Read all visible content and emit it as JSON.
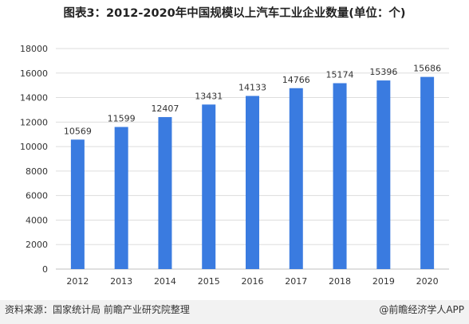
{
  "title": "图表3：2012-2020年中国规模以上汽车工业企业数量(单位：个)",
  "footer": {
    "source": "资料来源：国家统计局 前瞻产业研究院整理",
    "brand": "@前瞻经济学人APP"
  },
  "colors": {
    "bar": "#3a7be0",
    "grid": "#dddddd",
    "axis": "#bfbfbf"
  },
  "chart_data": {
    "type": "bar",
    "title": "图表3：2012-2020年中国规模以上汽车工业企业数量(单位：个)",
    "categories": [
      "2012",
      "2013",
      "2014",
      "2015",
      "2016",
      "2017",
      "2018",
      "2019",
      "2020"
    ],
    "values": [
      10569,
      11599,
      12407,
      13431,
      14133,
      14766,
      15174,
      15396,
      15686
    ],
    "ylim": [
      0,
      18000
    ],
    "yticks": [
      0,
      2000,
      4000,
      6000,
      8000,
      10000,
      12000,
      14000,
      16000,
      18000
    ],
    "grid": true,
    "legend": "none",
    "xlabel": "",
    "ylabel": ""
  }
}
